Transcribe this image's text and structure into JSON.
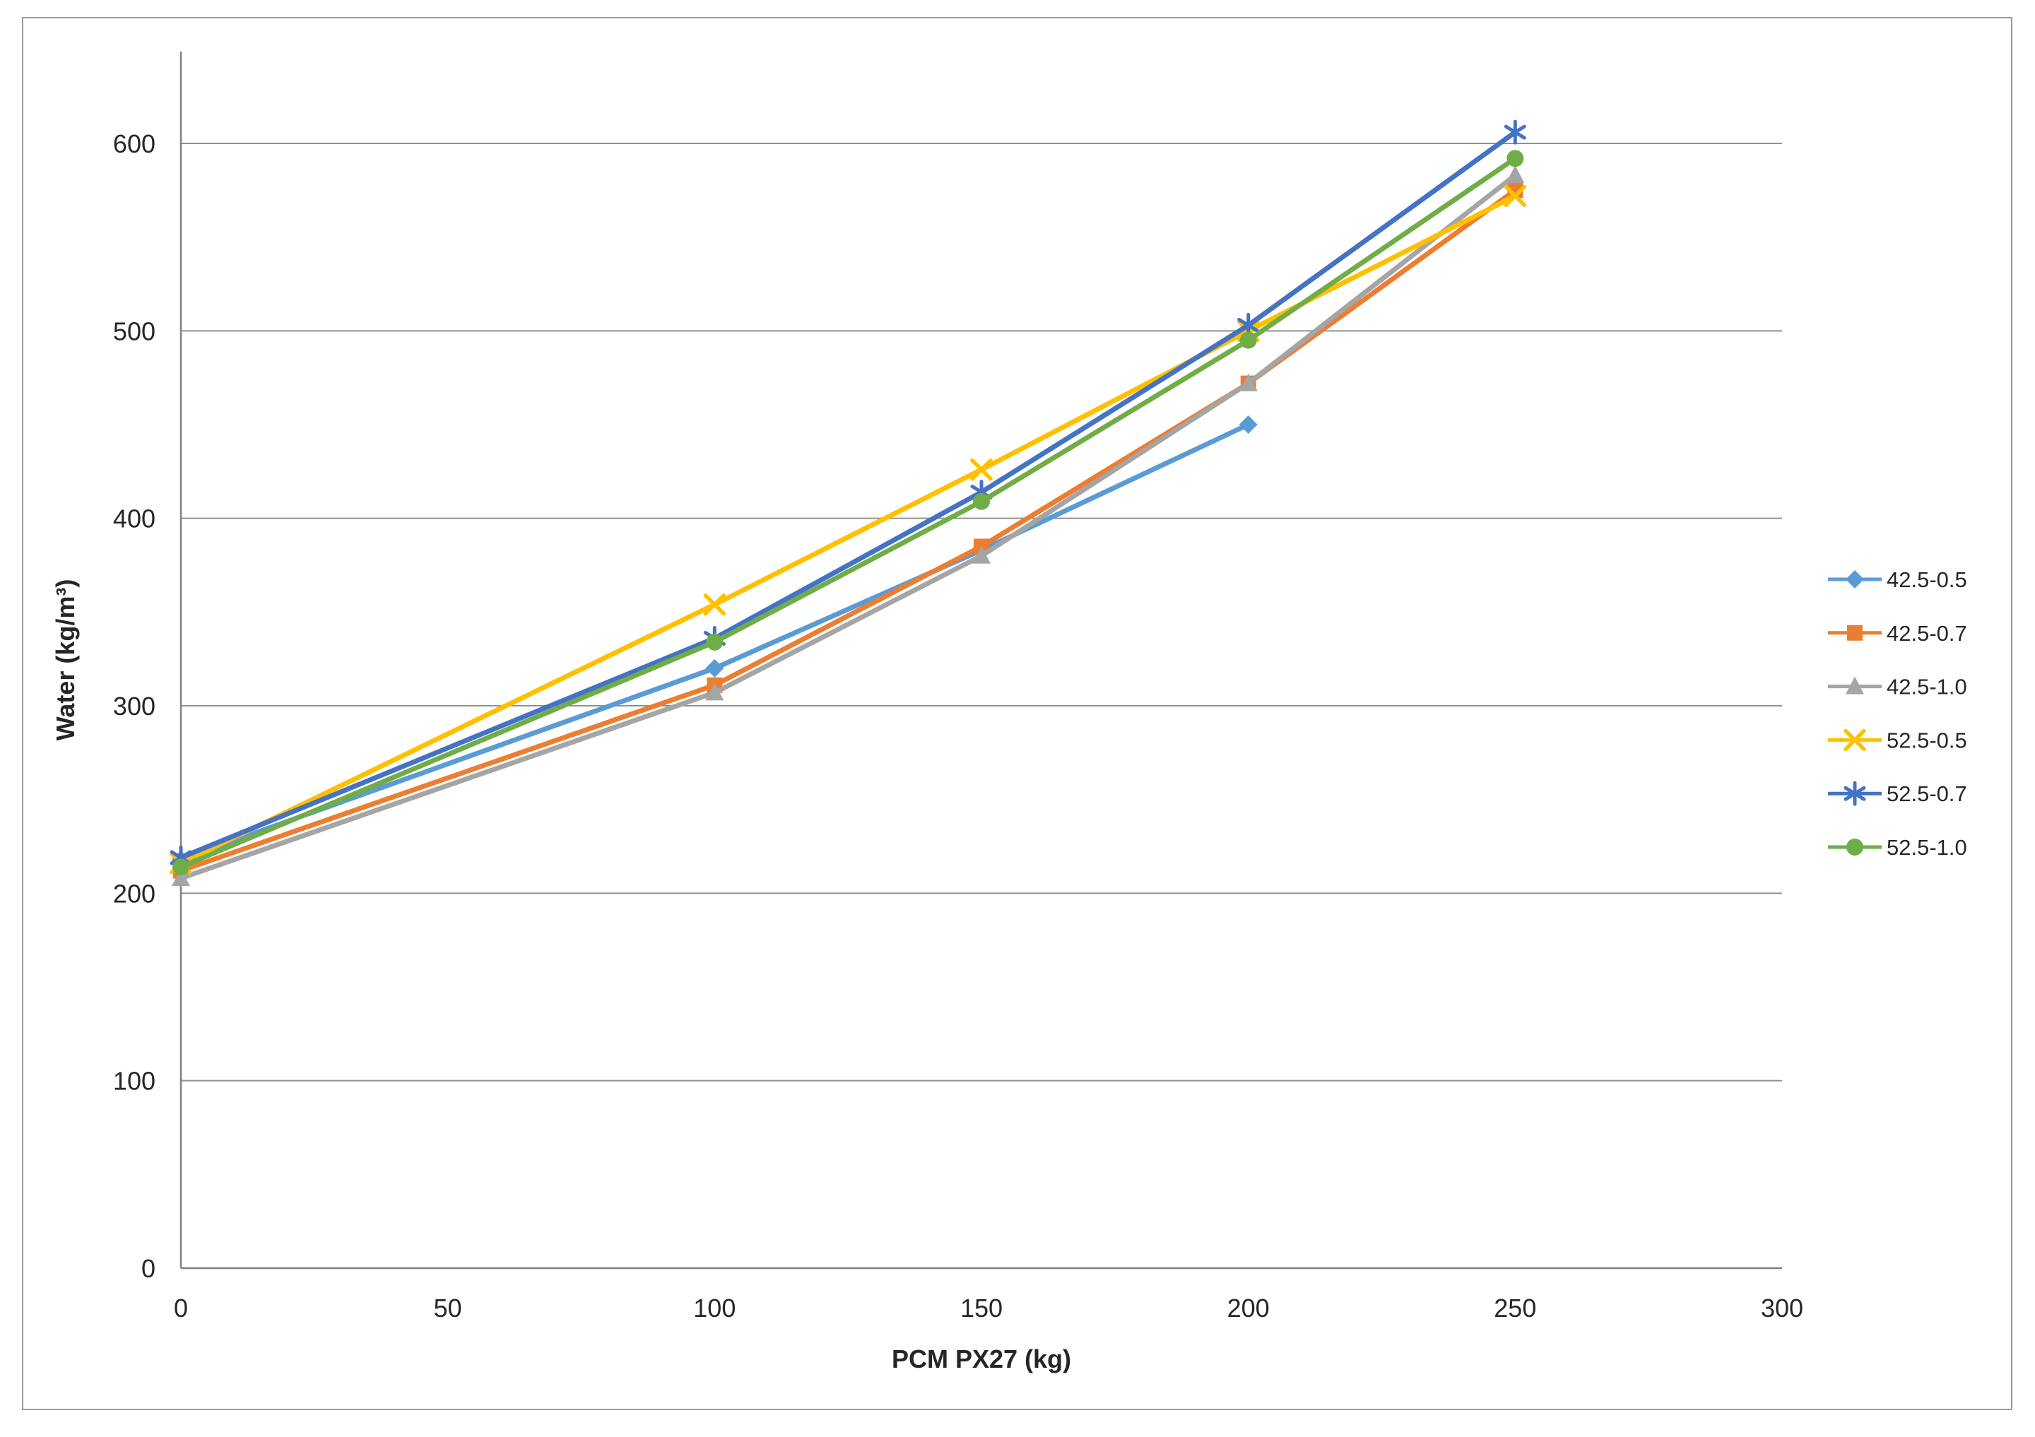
{
  "chart_data": {
    "type": "line",
    "title": "",
    "xlabel": "PCM PX27 (kg)",
    "ylabel": "Water (kg/m³)",
    "xlim": [
      0,
      300
    ],
    "ylim": [
      0,
      650
    ],
    "x_ticks": [
      0,
      50,
      100,
      150,
      200,
      250,
      300
    ],
    "y_ticks": [
      0,
      100,
      200,
      300,
      400,
      500,
      600
    ],
    "grid": "horizontal",
    "legend_position": "right-outside",
    "series": [
      {
        "name": "42.5-0.5",
        "color": "#5B9BD5",
        "marker": "diamond",
        "points": [
          [
            0,
            218
          ],
          [
            100,
            320
          ],
          [
            150,
            383
          ],
          [
            200,
            450
          ]
        ]
      },
      {
        "name": "42.5-0.7",
        "color": "#ED7D31",
        "marker": "square",
        "points": [
          [
            0,
            212
          ],
          [
            100,
            311
          ],
          [
            150,
            385
          ],
          [
            200,
            472
          ],
          [
            250,
            575
          ]
        ]
      },
      {
        "name": "42.5-1.0",
        "color": "#A5A5A5",
        "marker": "triangle",
        "points": [
          [
            0,
            208
          ],
          [
            100,
            307
          ],
          [
            150,
            380
          ],
          [
            200,
            472
          ],
          [
            250,
            583
          ]
        ]
      },
      {
        "name": "52.5-0.5",
        "color": "#FFC000",
        "marker": "x",
        "points": [
          [
            0,
            216
          ],
          [
            100,
            354
          ],
          [
            150,
            426
          ],
          [
            200,
            500
          ],
          [
            250,
            572
          ]
        ]
      },
      {
        "name": "52.5-0.7",
        "color": "#4472C4",
        "marker": "asterisk",
        "points": [
          [
            0,
            219
          ],
          [
            100,
            336
          ],
          [
            150,
            414
          ],
          [
            200,
            503
          ],
          [
            250,
            606
          ]
        ]
      },
      {
        "name": "52.5-1.0",
        "color": "#70AD47",
        "marker": "circle",
        "points": [
          [
            0,
            214
          ],
          [
            100,
            334
          ],
          [
            150,
            409
          ],
          [
            200,
            495
          ],
          [
            250,
            592
          ]
        ]
      }
    ]
  },
  "colors": {
    "gridline": "#909090",
    "axis": "#808080",
    "frame_border": "#9b9b9b",
    "text": "#262626",
    "background": "#FFFFFF"
  }
}
